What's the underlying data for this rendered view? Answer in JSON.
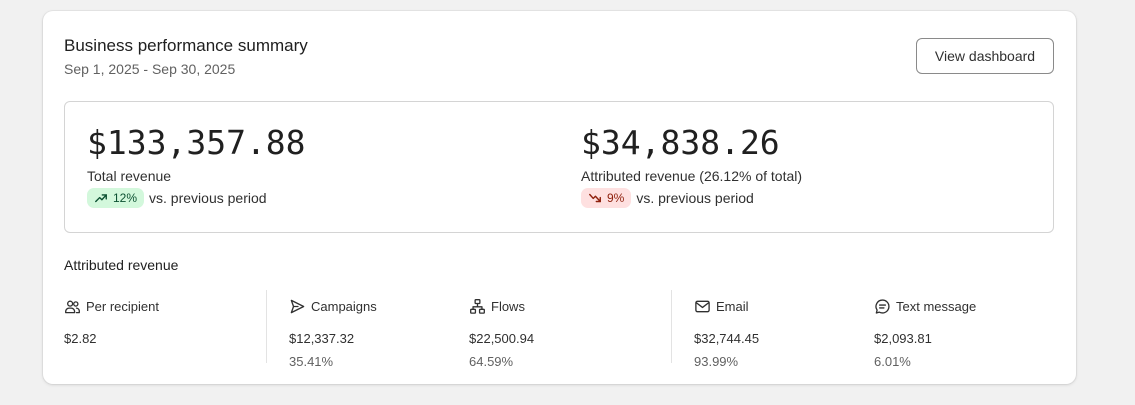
{
  "header": {
    "title": "Business performance summary",
    "date_range": "Sep 1, 2025 - Sep 30, 2025",
    "button_label": "View dashboard"
  },
  "summary": {
    "total": {
      "value": "$133,357.88",
      "label": "Total revenue",
      "change": "12%",
      "direction": "up",
      "compare_text": "vs. previous period"
    },
    "attributed": {
      "value": "$34,838.26",
      "label": "Attributed revenue (26.12% of total)",
      "change": "9%",
      "direction": "down",
      "compare_text": "vs. previous period"
    }
  },
  "attributed_section": {
    "title": "Attributed revenue",
    "stats": [
      {
        "icon": "people-icon",
        "label": "Per recipient",
        "value": "$2.82",
        "percent": ""
      },
      {
        "icon": "send-icon",
        "label": "Campaigns",
        "value": "$12,337.32",
        "percent": "35.41%"
      },
      {
        "icon": "flow-icon",
        "label": "Flows",
        "value": "$22,500.94",
        "percent": "64.59%"
      },
      {
        "icon": "mail-icon",
        "label": "Email",
        "value": "$32,744.45",
        "percent": "93.99%"
      },
      {
        "icon": "chat-icon",
        "label": "Text message",
        "value": "$2,093.81",
        "percent": "6.01%"
      }
    ]
  },
  "colors": {
    "up_badge_bg": "#d3f8dc",
    "up_badge_text": "#0c5132",
    "down_badge_bg": "#fee0e0",
    "down_badge_text": "#8e1f0b"
  }
}
